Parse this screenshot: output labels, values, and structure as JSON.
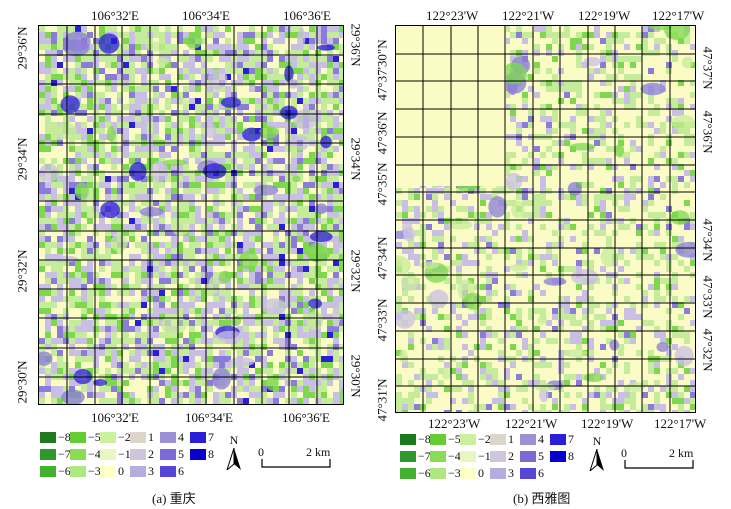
{
  "panels": [
    {
      "id": "a",
      "caption": "(a) 重庆",
      "top_labels": [
        "106°32'E",
        "106°34'E",
        "106°36'E"
      ],
      "bottom_labels": [
        "106°32'E",
        "106°34'E",
        "106°36'E"
      ],
      "left_labels": [
        "29°36'N",
        "29°34'N",
        "29°32'N",
        "29°30'N"
      ],
      "right_labels": [
        "29°36'N",
        "29°34'N",
        "29°32'N",
        "29°30'N"
      ],
      "scale_label": "2 km",
      "scale_zero": "0",
      "north": "N"
    },
    {
      "id": "b",
      "caption": "(b) 西雅图",
      "top_labels": [
        "122°23'W",
        "122°21'W",
        "122°19'W",
        "122°17'W"
      ],
      "bottom_labels": [
        "122°23'W",
        "122°21'W",
        "122°19'W",
        "122°17'W"
      ],
      "left_labels": [
        "47°37'30\"N",
        "47°36'N",
        "47°35'N",
        "47°34'N",
        "47°33'N",
        "47°31'N"
      ],
      "right_labels": [
        "47°37'N",
        "47°36'N",
        "47°34'N",
        "47°33'N",
        "47°32'N"
      ],
      "scale_label": "2 km",
      "scale_zero": "0",
      "north": "N"
    }
  ],
  "legend": {
    "items": [
      {
        "label": "−8",
        "color": "#1f7a1f"
      },
      {
        "label": "−5",
        "color": "#66cc33"
      },
      {
        "label": "−2",
        "color": "#ccf0a0"
      },
      {
        "label": "1",
        "color": "#ddd6c8"
      },
      {
        "label": "4",
        "color": "#9c8fd6"
      },
      {
        "label": "7",
        "color": "#2a1fd6"
      },
      {
        "label": "−7",
        "color": "#2e9a2e"
      },
      {
        "label": "−4",
        "color": "#88dd55"
      },
      {
        "label": "−1",
        "color": "#e6f7c0"
      },
      {
        "label": "2",
        "color": "#cfc6dd"
      },
      {
        "label": "5",
        "color": "#7a6ad6"
      },
      {
        "label": "8",
        "color": "#0a00cc"
      },
      {
        "label": "−6",
        "color": "#44b030"
      },
      {
        "label": "−3",
        "color": "#aee880"
      },
      {
        "label": "0",
        "color": "#ffffc8"
      },
      {
        "label": "3",
        "color": "#b7acde"
      },
      {
        "label": "6",
        "color": "#5546d6"
      }
    ]
  },
  "colors": {
    "bg_yellow": "#fbfbc6",
    "green_light": "#c5ec9a",
    "green_mid": "#7ed84e",
    "purple_light": "#c9bfe4",
    "purple_mid": "#8a7cd8",
    "blue_dark": "#2a1fd6",
    "grid": "#000000"
  }
}
